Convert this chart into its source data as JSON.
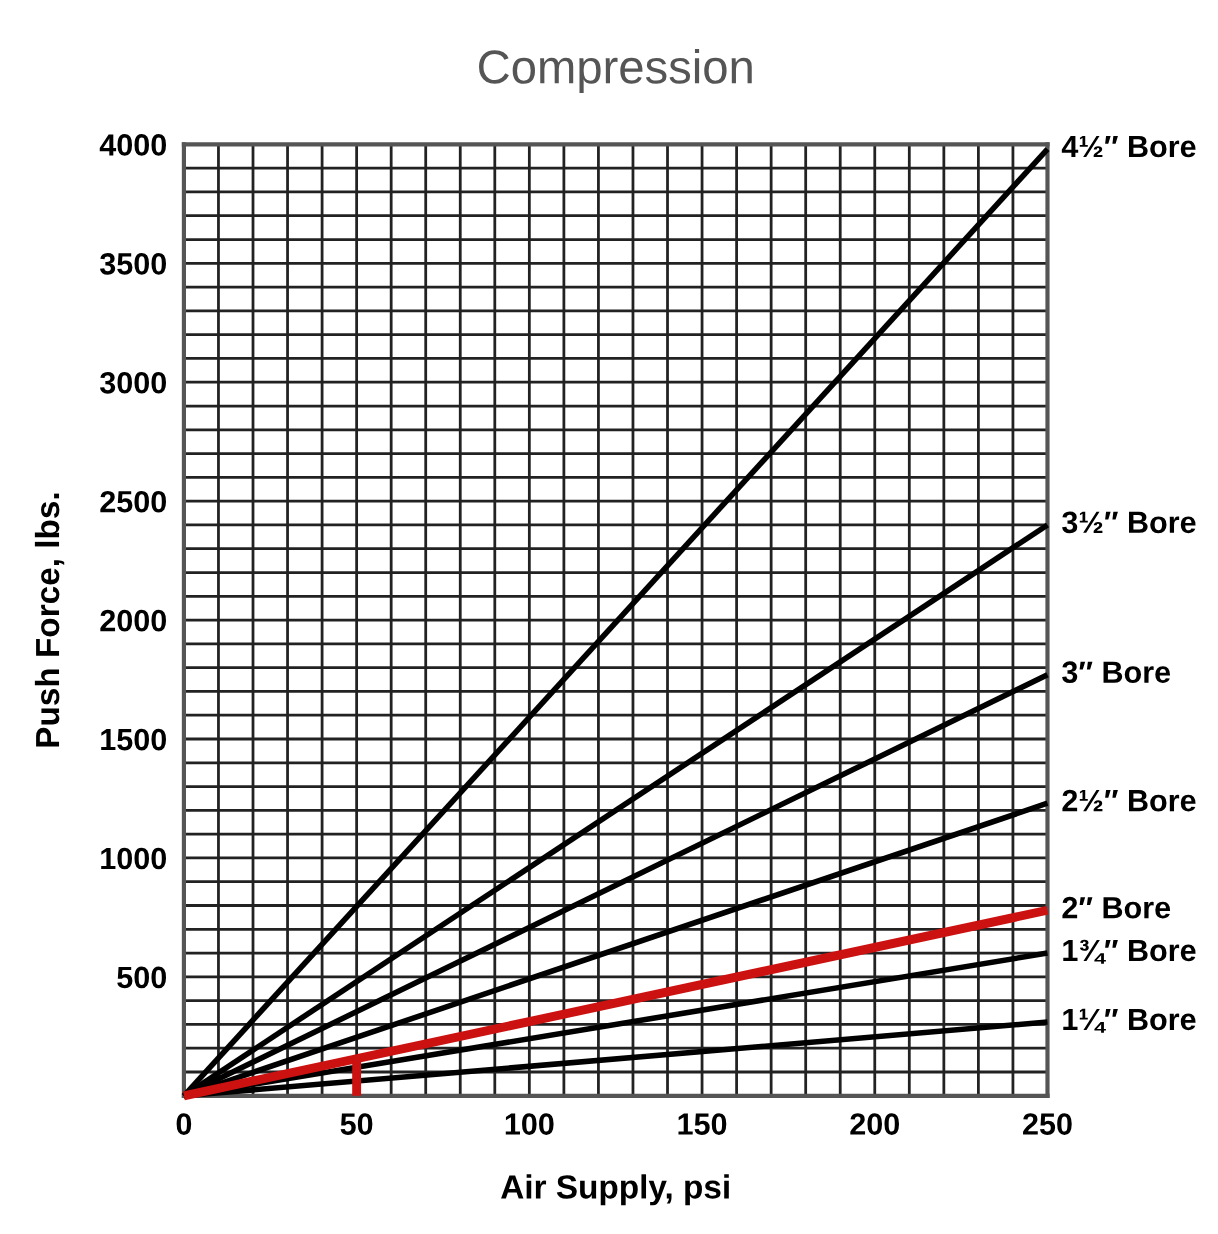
{
  "chart_data": {
    "type": "line",
    "title": "Compression",
    "xlabel": "Air Supply, psi",
    "ylabel": "Push Force, lbs.",
    "xlim": [
      0,
      250
    ],
    "ylim": [
      0,
      4000
    ],
    "xticks": [
      0,
      {
        "value": 10,
        "label": null
      },
      {
        "value": 20,
        "label": null
      },
      {
        "value": 30,
        "label": null
      },
      {
        "value": 40,
        "label": null
      },
      50,
      {
        "value": 60,
        "label": null
      },
      {
        "value": 70,
        "label": null
      },
      {
        "value": 80,
        "label": null
      },
      {
        "value": 90,
        "label": null
      },
      100,
      {
        "value": 110,
        "label": null
      },
      {
        "value": 120,
        "label": null
      },
      {
        "value": 130,
        "label": null
      },
      {
        "value": 140,
        "label": null
      },
      150,
      {
        "value": 160,
        "label": null
      },
      {
        "value": 170,
        "label": null
      },
      {
        "value": 180,
        "label": null
      },
      {
        "value": 190,
        "label": null
      },
      200,
      {
        "value": 210,
        "label": null
      },
      {
        "value": 220,
        "label": null
      },
      {
        "value": 230,
        "label": null
      },
      {
        "value": 240,
        "label": null
      },
      250
    ],
    "yticks": [
      {
        "value": 0,
        "label": null
      },
      {
        "value": 100,
        "label": null
      },
      {
        "value": 200,
        "label": null
      },
      {
        "value": 300,
        "label": null
      },
      {
        "value": 400,
        "label": null
      },
      500,
      {
        "value": 600,
        "label": null
      },
      {
        "value": 700,
        "label": null
      },
      {
        "value": 800,
        "label": null
      },
      {
        "value": 900,
        "label": null
      },
      1000,
      {
        "value": 1100,
        "label": null
      },
      {
        "value": 1200,
        "label": null
      },
      {
        "value": 1300,
        "label": null
      },
      {
        "value": 1400,
        "label": null
      },
      1500,
      {
        "value": 1600,
        "label": null
      },
      {
        "value": 1700,
        "label": null
      },
      {
        "value": 1800,
        "label": null
      },
      {
        "value": 1900,
        "label": null
      },
      2000,
      {
        "value": 2100,
        "label": null
      },
      {
        "value": 2200,
        "label": null
      },
      {
        "value": 2300,
        "label": null
      },
      {
        "value": 2400,
        "label": null
      },
      2500,
      {
        "value": 2600,
        "label": null
      },
      {
        "value": 2700,
        "label": null
      },
      {
        "value": 2800,
        "label": null
      },
      {
        "value": 2900,
        "label": null
      },
      3000,
      {
        "value": 3100,
        "label": null
      },
      {
        "value": 3200,
        "label": null
      },
      {
        "value": 3300,
        "label": null
      },
      {
        "value": 3400,
        "label": null
      },
      3500,
      {
        "value": 3600,
        "label": null
      },
      {
        "value": 3700,
        "label": null
      },
      {
        "value": 3800,
        "label": null
      },
      {
        "value": 3900,
        "label": null
      },
      4000
    ],
    "grid": true,
    "legend": false,
    "marker": "none",
    "line_style": "solid",
    "series": [
      {
        "name": "4½″ Bore",
        "color": "#000000",
        "x": [
          0,
          250
        ],
        "values": [
          0,
          3980
        ]
      },
      {
        "name": "3½″ Bore",
        "color": "#000000",
        "x": [
          0,
          250
        ],
        "values": [
          0,
          2400
        ]
      },
      {
        "name": "3″ Bore",
        "color": "#000000",
        "x": [
          0,
          250
        ],
        "values": [
          0,
          1770
        ]
      },
      {
        "name": "2½″ Bore",
        "color": "#000000",
        "x": [
          0,
          250
        ],
        "values": [
          0,
          1230
        ]
      },
      {
        "name": "2″ Bore",
        "color": "#cc1111",
        "x": [
          0,
          250
        ],
        "values": [
          0,
          780
        ]
      },
      {
        "name": "1¾″ Bore",
        "color": "#000000",
        "x": [
          0,
          250
        ],
        "values": [
          0,
          600
        ]
      },
      {
        "name": "1¼″ Bore",
        "color": "#000000",
        "x": [
          0,
          250
        ],
        "values": [
          0,
          310
        ]
      },
      {
        "color": "#cc1111",
        "x": [
          50,
          50
        ],
        "values": [
          0,
          160
        ]
      }
    ]
  }
}
